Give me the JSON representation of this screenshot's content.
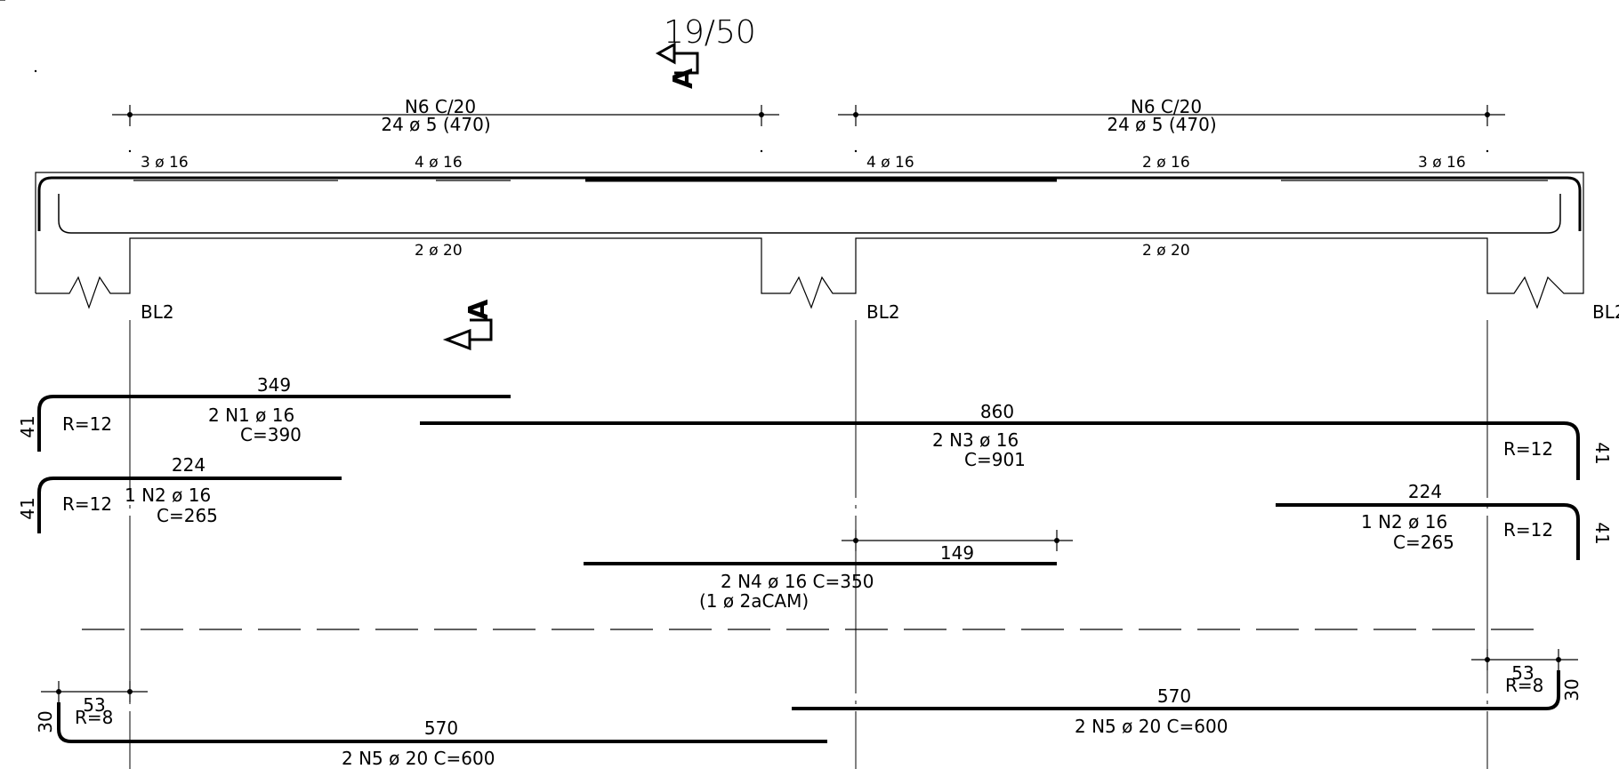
{
  "header": {
    "beam_label": "19/50"
  },
  "section_marks": {
    "label": "A"
  },
  "stirrups": [
    {
      "line1": "N6  C/20",
      "line2": "24  ø  5  (470)"
    },
    {
      "line1": "N6  C/20",
      "line2": "24  ø  5  (470)"
    }
  ],
  "top_bars": [
    "3  ø  16",
    "4  ø  16",
    "4  ø  16",
    "2  ø  16",
    "3  ø  16"
  ],
  "bottom_bars": [
    "2  ø  20",
    "2  ø  20"
  ],
  "supports": [
    "BL2",
    "BL2",
    "BL2"
  ],
  "bars": {
    "n1": {
      "length": "349",
      "hook": "41",
      "radius": "R=12",
      "label": "2  N1  ø  16",
      "total": "C=390"
    },
    "n2_left": {
      "length": "224",
      "hook": "41",
      "radius": "R=12",
      "label": "1  N2  ø  16",
      "total": "C=265"
    },
    "n3": {
      "length": "860",
      "hook": "41",
      "radius": "R=12",
      "label": "2  N3  ø  16",
      "total": "C=901"
    },
    "n2_right": {
      "length": "224",
      "hook": "41",
      "radius": "R=12",
      "label": "1  N2  ø  16",
      "total": "C=265"
    },
    "n4": {
      "length": "149",
      "label": "2  N4  ø  16  C=350",
      "note": "(1  ø  2aCAM)"
    },
    "n5_left": {
      "length": "570",
      "hook_len": "53",
      "hook": "30",
      "radius": "R=8",
      "label": "2  N5  ø  20  C=600"
    },
    "n5_right": {
      "length": "570",
      "hook_len": "53",
      "hook": "30",
      "radius": "R=8",
      "label": "2  N5  ø  20  C=600"
    }
  }
}
